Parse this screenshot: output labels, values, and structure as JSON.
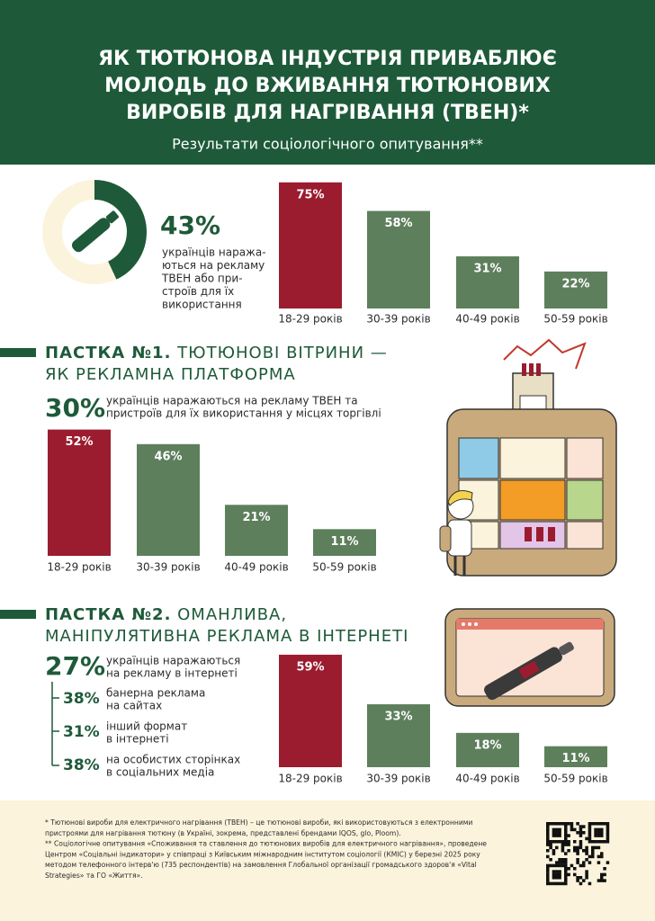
{
  "header": {
    "title": [
      "ЯК ТЮТЮНОВА ІНДУСТРІЯ ПРИВАБЛЮЄ",
      "МОЛОДЬ ДО ВЖИВАННЯ ТЮТЮНОВИХ",
      "ВИРОБІВ ДЛЯ НАГРІВАННЯ (ТВЕН)*"
    ],
    "subtitle": "Результати соціологічного опитування**"
  },
  "intro": {
    "value": 43,
    "label": "43%",
    "text": [
      "українців наража-",
      "ються на рекламу",
      "ТВЕН або при-",
      "строїв для їх",
      "використання"
    ]
  },
  "trap1": {
    "label": "ПАСТКА №1.",
    "title": [
      " ТЮТЮНОВІ ВІТРИНИ —",
      "ЯК РЕКЛАМНА ПЛАТФОРМА"
    ],
    "stat": "30%",
    "text": [
      "українців наражаються на рекламу ТВЕН та",
      "пристроїв для їх використання у місцях торгівлі"
    ]
  },
  "trap2": {
    "label": "ПАСТКА №2.",
    "title": [
      " ОМАНЛИВА,",
      "МАНІПУЛЯТИВНА РЕКЛАМА В ІНТЕРНЕТІ"
    ],
    "stat": "27%",
    "text": [
      "українців наражаються",
      "на рекламу в інтернеті"
    ],
    "items": [
      {
        "stat": "38%",
        "text": [
          "банерна реклама",
          "на сайтах"
        ]
      },
      {
        "stat": "31%",
        "text": [
          "інший формат",
          "в інтернеті"
        ]
      },
      {
        "stat": "38%",
        "text": [
          "на особистих сторінках",
          "в соціальних медіа"
        ]
      }
    ]
  },
  "chart_data": [
    {
      "type": "bar",
      "categories": [
        "18-29 років",
        "30-39 років",
        "40-49 років",
        "50-59 років"
      ],
      "values": [
        75,
        58,
        31,
        22
      ],
      "value_labels": [
        "75%",
        "58%",
        "31%",
        "22%"
      ],
      "colors": [
        "#9b1c2e",
        "#5e7f5c",
        "#5e7f5c",
        "#5e7f5c"
      ]
    },
    {
      "type": "bar",
      "categories": [
        "18-29 років",
        "30-39 років",
        "40-49 років",
        "50-59 років"
      ],
      "values": [
        52,
        46,
        21,
        11
      ],
      "value_labels": [
        "52%",
        "46%",
        "21%",
        "11%"
      ],
      "colors": [
        "#9b1c2e",
        "#5e7f5c",
        "#5e7f5c",
        "#5e7f5c"
      ]
    },
    {
      "type": "bar",
      "categories": [
        "18-29 років",
        "30-39 років",
        "40-49 років",
        "50-59 років"
      ],
      "values": [
        59,
        33,
        18,
        11
      ],
      "value_labels": [
        "59%",
        "33%",
        "18%",
        "11%"
      ],
      "colors": [
        "#9b1c2e",
        "#5e7f5c",
        "#5e7f5c",
        "#5e7f5c"
      ]
    }
  ],
  "footnotes": [
    "* Тютюнові вироби для електричного нагрівання (ТВЕН) – це тютюнові вироби, які використовуються з електронними",
    "пристроями для нагрівання тютюну (в Україні, зокрема, представлені брендами IQOS, glo, Ploom).",
    "** Соціологічне опитування «Споживання та ставлення до тютюнових виробів для електричного нагрівання», проведене",
    "Центром «Соціальні індикатори» у співпраці з Київським міжнародним інститутом соціології (КМІС) у березні 2025 року",
    "методом телефонного інтерв'ю (735 респондентів) на замовлення Глобальної організації громадського здоров'я «Vital",
    "Strategies» та ГО «Життя»."
  ]
}
